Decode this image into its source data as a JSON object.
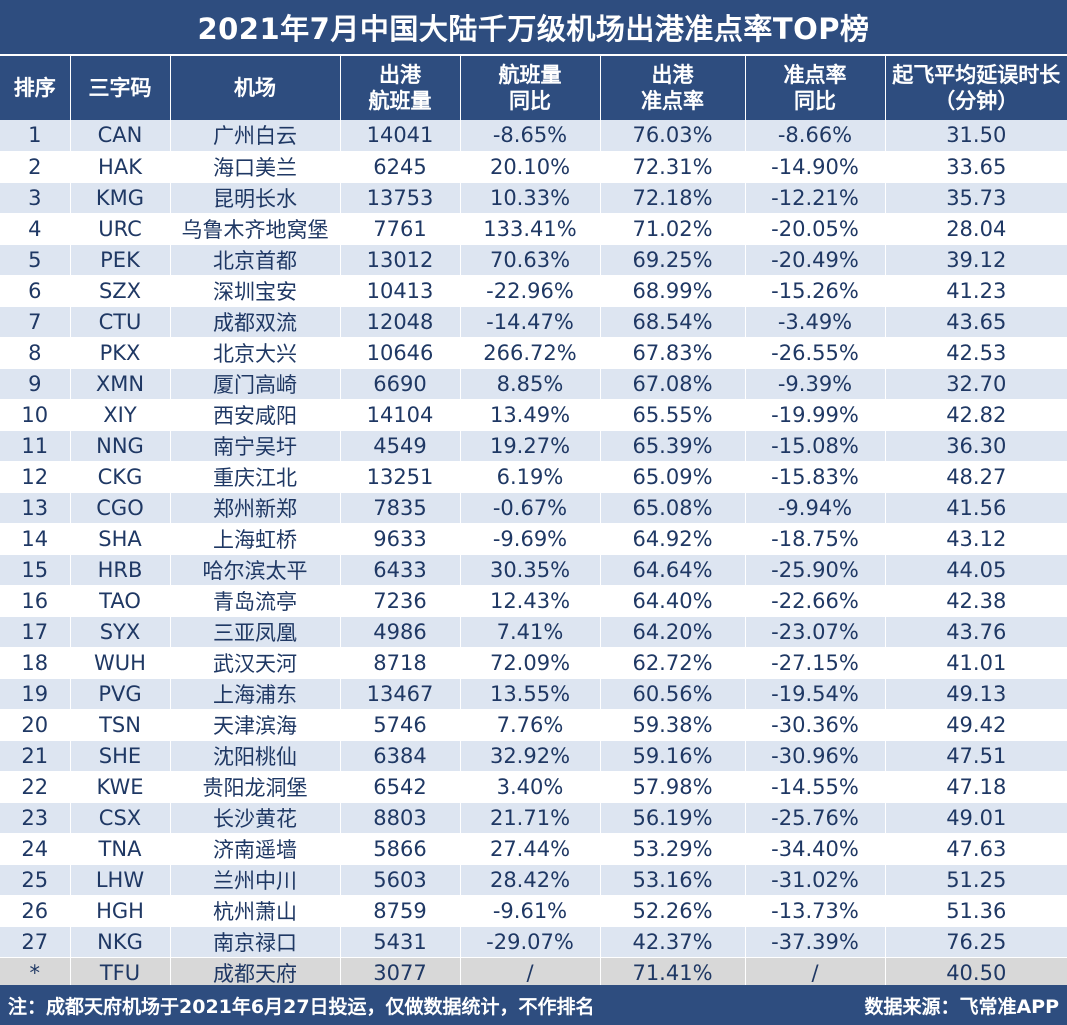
{
  "title": "2021年7月中国大陆千万级机场出港准点率TOP榜",
  "headers": {
    "rank": "排序",
    "code": "三字码",
    "name": "机场",
    "flights_l1": "出港",
    "flights_l2": "航班量",
    "flights_yoy_l1": "航班量",
    "flights_yoy_l2": "同比",
    "otp_l1": "出港",
    "otp_l2": "准点率",
    "otp_yoy_l1": "准点率",
    "otp_yoy_l2": "同比",
    "delay_l1": "起飞平均延误时长",
    "delay_l2": "（分钟）"
  },
  "rows": [
    {
      "rank": "1",
      "code": "CAN",
      "name": "广州白云",
      "flights": "14041",
      "flights_yoy": "-8.65%",
      "otp": "76.03%",
      "otp_yoy": "-8.66%",
      "delay": "31.50"
    },
    {
      "rank": "2",
      "code": "HAK",
      "name": "海口美兰",
      "flights": "6245",
      "flights_yoy": "20.10%",
      "otp": "72.31%",
      "otp_yoy": "-14.90%",
      "delay": "33.65"
    },
    {
      "rank": "3",
      "code": "KMG",
      "name": "昆明长水",
      "flights": "13753",
      "flights_yoy": "10.33%",
      "otp": "72.18%",
      "otp_yoy": "-12.21%",
      "delay": "35.73"
    },
    {
      "rank": "4",
      "code": "URC",
      "name": "乌鲁木齐地窝堡",
      "flights": "7761",
      "flights_yoy": "133.41%",
      "otp": "71.02%",
      "otp_yoy": "-20.05%",
      "delay": "28.04"
    },
    {
      "rank": "5",
      "code": "PEK",
      "name": "北京首都",
      "flights": "13012",
      "flights_yoy": "70.63%",
      "otp": "69.25%",
      "otp_yoy": "-20.49%",
      "delay": "39.12"
    },
    {
      "rank": "6",
      "code": "SZX",
      "name": "深圳宝安",
      "flights": "10413",
      "flights_yoy": "-22.96%",
      "otp": "68.99%",
      "otp_yoy": "-15.26%",
      "delay": "41.23"
    },
    {
      "rank": "7",
      "code": "CTU",
      "name": "成都双流",
      "flights": "12048",
      "flights_yoy": "-14.47%",
      "otp": "68.54%",
      "otp_yoy": "-3.49%",
      "delay": "43.65"
    },
    {
      "rank": "8",
      "code": "PKX",
      "name": "北京大兴",
      "flights": "10646",
      "flights_yoy": "266.72%",
      "otp": "67.83%",
      "otp_yoy": "-26.55%",
      "delay": "42.53"
    },
    {
      "rank": "9",
      "code": "XMN",
      "name": "厦门高崎",
      "flights": "6690",
      "flights_yoy": "8.85%",
      "otp": "67.08%",
      "otp_yoy": "-9.39%",
      "delay": "32.70"
    },
    {
      "rank": "10",
      "code": "XIY",
      "name": "西安咸阳",
      "flights": "14104",
      "flights_yoy": "13.49%",
      "otp": "65.55%",
      "otp_yoy": "-19.99%",
      "delay": "42.82"
    },
    {
      "rank": "11",
      "code": "NNG",
      "name": "南宁吴圩",
      "flights": "4549",
      "flights_yoy": "19.27%",
      "otp": "65.39%",
      "otp_yoy": "-15.08%",
      "delay": "36.30"
    },
    {
      "rank": "12",
      "code": "CKG",
      "name": "重庆江北",
      "flights": "13251",
      "flights_yoy": "6.19%",
      "otp": "65.09%",
      "otp_yoy": "-15.83%",
      "delay": "48.27"
    },
    {
      "rank": "13",
      "code": "CGO",
      "name": "郑州新郑",
      "flights": "7835",
      "flights_yoy": "-0.67%",
      "otp": "65.08%",
      "otp_yoy": "-9.94%",
      "delay": "41.56"
    },
    {
      "rank": "14",
      "code": "SHA",
      "name": "上海虹桥",
      "flights": "9633",
      "flights_yoy": "-9.69%",
      "otp": "64.92%",
      "otp_yoy": "-18.75%",
      "delay": "43.12"
    },
    {
      "rank": "15",
      "code": "HRB",
      "name": "哈尔滨太平",
      "flights": "6433",
      "flights_yoy": "30.35%",
      "otp": "64.64%",
      "otp_yoy": "-25.90%",
      "delay": "44.05"
    },
    {
      "rank": "16",
      "code": "TAO",
      "name": "青岛流亭",
      "flights": "7236",
      "flights_yoy": "12.43%",
      "otp": "64.40%",
      "otp_yoy": "-22.66%",
      "delay": "42.38"
    },
    {
      "rank": "17",
      "code": "SYX",
      "name": "三亚凤凰",
      "flights": "4986",
      "flights_yoy": "7.41%",
      "otp": "64.20%",
      "otp_yoy": "-23.07%",
      "delay": "43.76"
    },
    {
      "rank": "18",
      "code": "WUH",
      "name": "武汉天河",
      "flights": "8718",
      "flights_yoy": "72.09%",
      "otp": "62.72%",
      "otp_yoy": "-27.15%",
      "delay": "41.01"
    },
    {
      "rank": "19",
      "code": "PVG",
      "name": "上海浦东",
      "flights": "13467",
      "flights_yoy": "13.55%",
      "otp": "60.56%",
      "otp_yoy": "-19.54%",
      "delay": "49.13"
    },
    {
      "rank": "20",
      "code": "TSN",
      "name": "天津滨海",
      "flights": "5746",
      "flights_yoy": "7.76%",
      "otp": "59.38%",
      "otp_yoy": "-30.36%",
      "delay": "49.42"
    },
    {
      "rank": "21",
      "code": "SHE",
      "name": "沈阳桃仙",
      "flights": "6384",
      "flights_yoy": "32.92%",
      "otp": "59.16%",
      "otp_yoy": "-30.96%",
      "delay": "47.51"
    },
    {
      "rank": "22",
      "code": "KWE",
      "name": "贵阳龙洞堡",
      "flights": "6542",
      "flights_yoy": "3.40%",
      "otp": "57.98%",
      "otp_yoy": "-14.55%",
      "delay": "47.18"
    },
    {
      "rank": "23",
      "code": "CSX",
      "name": "长沙黄花",
      "flights": "8803",
      "flights_yoy": "21.71%",
      "otp": "56.19%",
      "otp_yoy": "-25.76%",
      "delay": "49.01"
    },
    {
      "rank": "24",
      "code": "TNA",
      "name": "济南遥墙",
      "flights": "5866",
      "flights_yoy": "27.44%",
      "otp": "53.29%",
      "otp_yoy": "-34.40%",
      "delay": "47.63"
    },
    {
      "rank": "25",
      "code": "LHW",
      "name": "兰州中川",
      "flights": "5603",
      "flights_yoy": "28.42%",
      "otp": "53.16%",
      "otp_yoy": "-31.02%",
      "delay": "51.25"
    },
    {
      "rank": "26",
      "code": "HGH",
      "name": "杭州萧山",
      "flights": "8759",
      "flights_yoy": "-9.61%",
      "otp": "52.26%",
      "otp_yoy": "-13.73%",
      "delay": "51.36"
    },
    {
      "rank": "27",
      "code": "NKG",
      "name": "南京禄口",
      "flights": "5431",
      "flights_yoy": "-29.07%",
      "otp": "42.37%",
      "otp_yoy": "-37.39%",
      "delay": "76.25"
    }
  ],
  "extra_row": {
    "rank": "*",
    "code": "TFU",
    "name": "成都天府",
    "flights": "3077",
    "flights_yoy": "/",
    "otp": "71.41%",
    "otp_yoy": "/",
    "delay": "40.50"
  },
  "footer": {
    "note": "注：成都天府机场于2021年6月27日投运，仅做数据统计，不作排名",
    "source": "数据来源：飞常准APP"
  }
}
